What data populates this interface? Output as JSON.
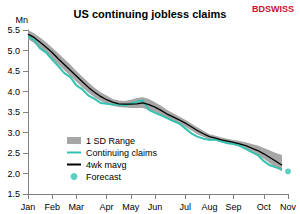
{
  "chart_data": {
    "type": "line",
    "title": "US continuing jobless claims",
    "ylabel": "Mn",
    "logo": "BDSWISS",
    "categories": [
      "Jan",
      null,
      null,
      null,
      "Feb",
      null,
      null,
      null,
      "Mar",
      null,
      null,
      null,
      null,
      "Apr",
      null,
      null,
      null,
      "May",
      null,
      null,
      null,
      "Jun",
      null,
      null,
      null,
      null,
      "Jul",
      null,
      null,
      null,
      "Aug",
      null,
      null,
      null,
      "Sep",
      null,
      null,
      null,
      null,
      "Oct",
      null,
      null,
      null,
      "Nov"
    ],
    "series": [
      {
        "name": "1 SD Range",
        "type": "range",
        "color": "#a6a6a6",
        "low": [
          5.28,
          5.18,
          5.05,
          4.93,
          4.8,
          4.66,
          4.52,
          4.38,
          4.24,
          4.1,
          3.97,
          3.86,
          3.77,
          3.7,
          3.65,
          3.62,
          3.61,
          3.6,
          3.6,
          3.6,
          3.55,
          3.5,
          3.42,
          3.34,
          3.28,
          3.22,
          3.14,
          3.05,
          2.96,
          2.89,
          2.83,
          2.8,
          2.76,
          2.73,
          2.7,
          2.65,
          2.6,
          2.53,
          2.45,
          2.36,
          2.25,
          2.14,
          2.05,
          null
        ],
        "high": [
          5.5,
          5.42,
          5.32,
          5.2,
          5.07,
          4.93,
          4.79,
          4.65,
          4.5,
          4.36,
          4.22,
          4.09,
          3.98,
          3.9,
          3.82,
          3.78,
          3.77,
          3.8,
          3.84,
          3.86,
          3.82,
          3.74,
          3.65,
          3.55,
          3.47,
          3.39,
          3.31,
          3.22,
          3.13,
          3.04,
          2.96,
          2.92,
          2.88,
          2.85,
          2.82,
          2.79,
          2.76,
          2.72,
          2.68,
          2.62,
          2.56,
          2.5,
          2.45,
          null
        ]
      },
      {
        "name": "Continuing claims",
        "type": "line",
        "color": "#33c3b0",
        "values": [
          5.35,
          5.25,
          5.05,
          4.95,
          4.78,
          4.62,
          4.45,
          4.35,
          4.15,
          4.05,
          3.9,
          3.82,
          3.72,
          3.7,
          3.68,
          3.68,
          3.66,
          3.7,
          3.75,
          3.78,
          3.55,
          3.48,
          3.42,
          3.35,
          3.28,
          3.22,
          3.1,
          2.98,
          2.9,
          2.85,
          2.82,
          2.83,
          2.78,
          2.74,
          2.72,
          2.68,
          2.6,
          2.52,
          2.45,
          2.3,
          2.2,
          2.15,
          2.1,
          null
        ]
      },
      {
        "name": "4wk mavg",
        "type": "line",
        "color": "#000000",
        "values": [
          5.4,
          5.32,
          5.2,
          5.08,
          4.95,
          4.8,
          4.66,
          4.52,
          4.38,
          4.24,
          4.1,
          3.98,
          3.88,
          3.8,
          3.74,
          3.7,
          3.69,
          3.69,
          3.7,
          3.72,
          3.68,
          3.62,
          3.54,
          3.45,
          3.38,
          3.31,
          3.23,
          3.14,
          3.05,
          2.97,
          2.9,
          2.86,
          2.82,
          2.79,
          2.76,
          2.72,
          2.68,
          2.62,
          2.56,
          2.48,
          2.39,
          2.3,
          2.2,
          null
        ]
      },
      {
        "name": "Forecast",
        "type": "scatter",
        "color": "#33c3b0",
        "marker": "circle",
        "values": [
          null,
          null,
          null,
          null,
          null,
          null,
          null,
          null,
          null,
          null,
          null,
          null,
          null,
          null,
          null,
          null,
          null,
          null,
          null,
          null,
          null,
          null,
          null,
          null,
          null,
          null,
          null,
          null,
          null,
          null,
          null,
          null,
          null,
          null,
          null,
          null,
          null,
          null,
          null,
          null,
          null,
          null,
          null,
          2.05
        ]
      }
    ],
    "ylim": [
      1.5,
      5.5
    ],
    "yticks": [
      1.5,
      {
        "value": 2,
        "label": "2.0"
      },
      2.5,
      {
        "value": 3,
        "label": "3.0"
      },
      3.5,
      {
        "value": 4,
        "label": "4.0"
      },
      4.5,
      {
        "value": 5,
        "label": "5.0"
      },
      5.5
    ],
    "grid": false,
    "legend": "lower left"
  }
}
